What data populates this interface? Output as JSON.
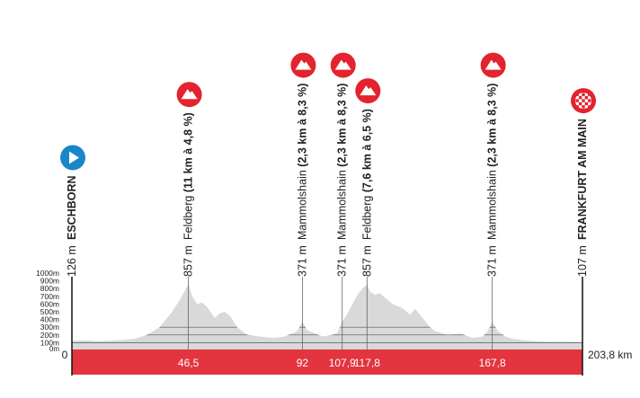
{
  "chart_data": {
    "type": "area",
    "title": "",
    "xlabel": "",
    "ylabel": "",
    "x_unit": "km",
    "xlim": [
      0,
      203.8
    ],
    "ylim": [
      0,
      1000
    ],
    "y_ticks": [
      "0m",
      "100m",
      "200m",
      "300m",
      "400m",
      "500m",
      "600m",
      "700m",
      "800m",
      "900m",
      "1000m"
    ],
    "x_start_label": "0",
    "x_end_label": "203,8 km",
    "km_labels": [
      {
        "km": 46.5,
        "label": "46,5"
      },
      {
        "km": 92,
        "label": "92"
      },
      {
        "km": 107.9,
        "label": "107,9"
      },
      {
        "km": 117.8,
        "label": "117,8"
      },
      {
        "km": 167.8,
        "label": "167,8"
      }
    ],
    "profile": {
      "km": [
        0,
        5,
        10,
        15,
        20,
        25,
        30,
        35,
        40,
        43,
        46.5,
        48,
        50,
        52,
        54,
        57,
        59,
        61,
        63,
        66,
        70,
        75,
        80,
        85,
        88,
        90,
        92,
        94,
        97,
        100,
        104,
        106,
        107.9,
        110,
        112,
        114,
        116,
        117.8,
        119,
        121,
        123,
        125,
        128,
        131,
        133,
        135,
        137,
        140,
        143,
        145,
        150,
        155,
        160,
        164,
        166,
        167.8,
        170,
        173,
        176,
        180,
        185,
        190,
        195,
        200,
        203.8
      ],
      "elevation": [
        126,
        130,
        120,
        125,
        135,
        150,
        200,
        300,
        500,
        650,
        857,
        700,
        600,
        620,
        560,
        420,
        480,
        500,
        450,
        300,
        200,
        180,
        160,
        180,
        220,
        250,
        371,
        260,
        220,
        180,
        200,
        230,
        371,
        480,
        600,
        720,
        800,
        857,
        760,
        720,
        740,
        680,
        600,
        560,
        520,
        460,
        540,
        420,
        300,
        250,
        200,
        220,
        160,
        180,
        250,
        371,
        250,
        180,
        150,
        130,
        120,
        110,
        115,
        110,
        107
      ]
    },
    "markers": [
      {
        "km": 0,
        "elevation_label": "126 m",
        "name": "ESCHBORN",
        "detail": "",
        "type": "start",
        "icon": "play-icon",
        "color": "#1a86c8"
      },
      {
        "km": 46.5,
        "elevation_label": "857 m",
        "name": "Feldberg",
        "detail": "(11 km à 4,8 %)",
        "type": "climb",
        "icon": "mountain-icon",
        "color": "#e3232e"
      },
      {
        "km": 92,
        "elevation_label": "371 m",
        "name": "Mammolshain",
        "detail": "(2,3 km à 8,3 %)",
        "type": "climb",
        "icon": "mountain-icon",
        "color": "#e3232e"
      },
      {
        "km": 107.9,
        "elevation_label": "371 m",
        "name": "Mammolshain",
        "detail": "(2,3 km à 8,3 %)",
        "type": "climb",
        "icon": "mountain-icon",
        "color": "#e3232e"
      },
      {
        "km": 117.8,
        "elevation_label": "857 m",
        "name": "Feldberg",
        "detail": "(7,6 km à 6,5 %)",
        "type": "climb",
        "icon": "mountain-icon",
        "color": "#e3232e"
      },
      {
        "km": 167.8,
        "elevation_label": "371 m",
        "name": "Mammolshain",
        "detail": "(2,3 km à 8,3 %)",
        "type": "climb",
        "icon": "mountain-icon",
        "color": "#e3232e"
      },
      {
        "km": 203.8,
        "elevation_label": "107 m",
        "name": "FRANKFURT AM MAIN",
        "detail": "",
        "type": "finish",
        "icon": "checkered-flag-icon",
        "color": "#e3232e"
      }
    ],
    "colors": {
      "profile": "#d9d9d9",
      "band": "#e3343f",
      "grid": "#555555"
    },
    "grid": true
  }
}
